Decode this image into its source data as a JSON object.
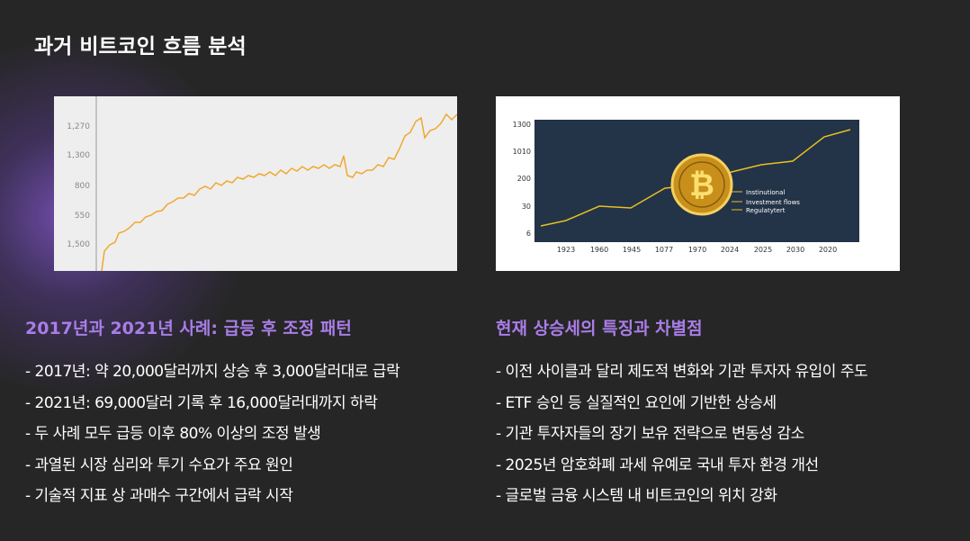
{
  "title": "과거 비트코인 흐름 분석",
  "left": {
    "image": {
      "yticks": [
        "1,270",
        "1,300",
        "800",
        "550",
        "1,500"
      ]
    },
    "heading": "2017년과 2021년 사례: 급등 후 조정 패턴",
    "bullets": [
      "- 2017년: 약 20,000달러까지 상승 후 3,000달러대로 급락",
      "- 2021년: 69,000달러 기록 후 16,000달러대까지 하락",
      "- 두 사례 모두 급등 이후 80% 이상의 조정 발생",
      "- 과열된 시장 심리와 투기 수요가 주요 원인",
      "- 기술적 지표 상 과매수 구간에서 급락 시작"
    ]
  },
  "right": {
    "image": {
      "yticks": [
        "1300",
        "1010",
        "200",
        "30",
        "6"
      ],
      "xticks": [
        "1923",
        "1960",
        "1945",
        "1077",
        "1970",
        "2024",
        "2025",
        "2030",
        "2020"
      ],
      "legend": [
        "Instinutional",
        "Investment flows",
        "Regulatytert"
      ]
    },
    "heading": "현재 상승세의 특징과 차별점",
    "bullets": [
      "- 이전 사이클과 달리 제도적 변화와 기관 투자자 유입이 주도",
      "- ETF 승인 등 실질적인 요인에 기반한 상승세",
      "- 기관 투자자들의 장기 보유 전략으로 변동성 감소",
      "- 2025년 암호화폐 과세 유예로 국내 투자 환경 개선",
      "- 글로벌 금융 시스템 내 비트코인의 위치 강화"
    ]
  }
}
